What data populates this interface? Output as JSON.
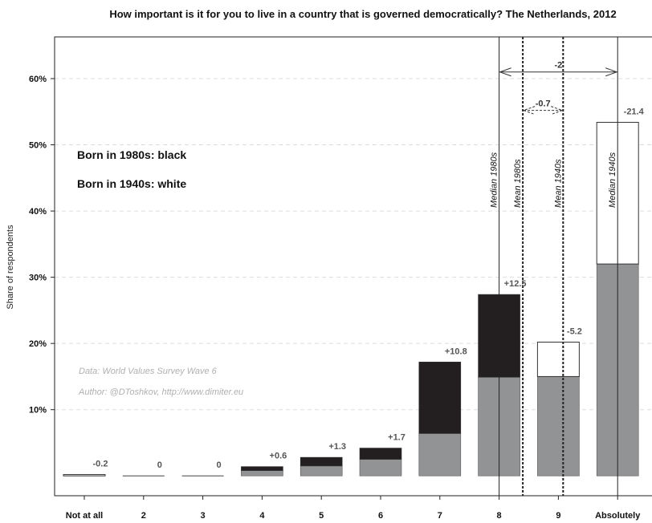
{
  "chart_data": {
    "type": "bar",
    "title": "How important is it for you to live in a country that is governed democratically? The Netherlands, 2012",
    "xlabel": "",
    "ylabel": "Share of respondents",
    "ylim": [
      -3.0,
      66.3
    ],
    "y_ticks": [
      10,
      20,
      30,
      40,
      50,
      60
    ],
    "y_tick_labels": [
      "10%",
      "20%",
      "30%",
      "40%",
      "50%",
      "60%"
    ],
    "categories": [
      "Not at all",
      "2",
      "3",
      "4",
      "5",
      "6",
      "7",
      "8",
      "9",
      "Absolutely"
    ],
    "series": [
      {
        "name": "Born in 1980s",
        "color": "#231f20",
        "values": [
          0.0,
          0.0,
          0.0,
          1.4,
          2.8,
          4.2,
          17.2,
          27.4,
          15.0,
          32.0
        ]
      },
      {
        "name": "Born in 1940s",
        "color": "#ffffff",
        "values": [
          0.2,
          0.0,
          0.0,
          0.8,
          1.5,
          2.5,
          6.4,
          14.9,
          20.2,
          53.4
        ]
      }
    ],
    "difference_labels": [
      "-0.2",
      "0",
      "0",
      "+0.6",
      "+1.3",
      "+1.7",
      "+10.8",
      "+12.5",
      "-5.2",
      "-21.4"
    ],
    "colors": {
      "overlap": "#929395",
      "black_bar": "#231f20",
      "white_bar": "#ffffff",
      "grid": "#dddddd"
    },
    "legend_lines": [
      "Born in 1980s: black",
      "Born in 1940s: white"
    ],
    "source_lines": [
      "Data: World Values Survey Wave 6",
      "Author: @DToshkov, http://www.dimiter.eu"
    ],
    "vertical_lines": [
      {
        "label": "Median 1980s",
        "x": 8.0,
        "style": "solid"
      },
      {
        "label": "Mean 1980s",
        "x": 8.4,
        "style": "dashed"
      },
      {
        "label": "Mean 1940s",
        "x": 9.08,
        "style": "dashed"
      },
      {
        "label": "Median 1940s",
        "x": 10.0,
        "style": "solid"
      }
    ],
    "arrows": [
      {
        "label": "-2",
        "from": 8.0,
        "to": 10.0,
        "y": 61.0,
        "style": "solid"
      },
      {
        "label": "-0.7",
        "from": 8.4,
        "to": 9.08,
        "y": 55.2,
        "style": "dashed"
      }
    ],
    "grid": true
  }
}
